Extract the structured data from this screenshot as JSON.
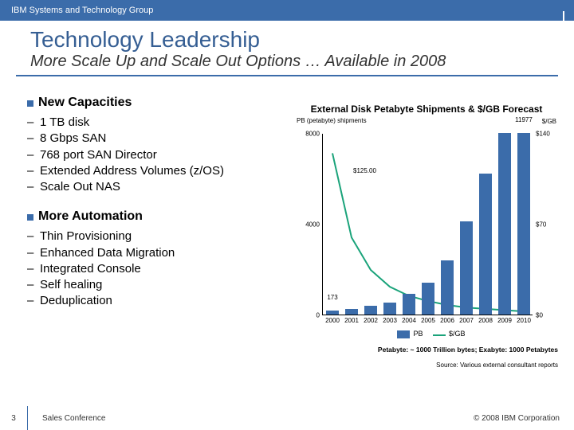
{
  "header": {
    "group": "IBM Systems and Technology Group"
  },
  "title": "Technology Leadership",
  "subtitle": "More Scale Up and Scale Out Options … Available in 2008",
  "sections": [
    {
      "head": "New Capacities",
      "items": [
        "1 TB disk",
        "8 Gbps SAN",
        "768 port SAN Director",
        "Extended Address Volumes (z/OS)",
        "Scale Out NAS"
      ]
    },
    {
      "head": "More Automation",
      "items": [
        "Thin Provisioning",
        "Enhanced Data Migration",
        "Integrated Console",
        "Self healing",
        "Deduplication"
      ]
    }
  ],
  "chart": {
    "title": "External Disk Petabyte Shipments & $/GB Forecast",
    "left_axis_label": "PB (petabyte) shipments",
    "right_axis_label": "$/GB",
    "ylim": [
      0,
      8000
    ],
    "yticks": [
      0,
      4000,
      8000
    ],
    "r_ylim": [
      0,
      140
    ],
    "r_yticks": [
      0,
      70,
      140
    ],
    "years": [
      2000,
      2001,
      2002,
      2003,
      2004,
      2005,
      2006,
      2007,
      2008,
      2009,
      2010
    ],
    "bars": [
      173,
      250,
      380,
      520,
      900,
      1400,
      2400,
      4100,
      6200,
      8800,
      11977
    ],
    "bar_color": "#3b6caa",
    "line": [
      125,
      60,
      35,
      22,
      15,
      11,
      8,
      6,
      5,
      4,
      3
    ],
    "line_color": "#1aa37a",
    "line_label": "$125.00",
    "first_bar_label": "173",
    "last_bar_label": "11977",
    "legend": {
      "pb": "PB",
      "gb": "$/GB"
    },
    "note1": "Petabyte: ~ 1000 Trillion bytes;  Exabyte: 1000 Petabytes",
    "note2": "Source: Various external consultant reports"
  },
  "footer": {
    "page": "3",
    "conf": "Sales Conference",
    "copy": "© 2008 IBM Corporation"
  }
}
